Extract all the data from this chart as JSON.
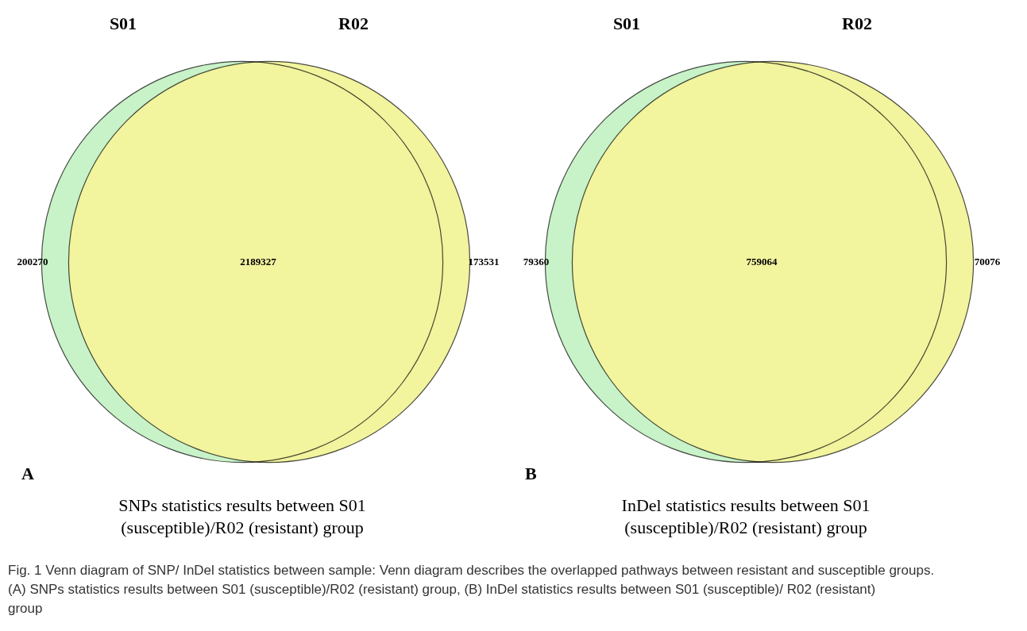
{
  "chart_data": [
    {
      "type": "other",
      "title": "A",
      "xlabel": "SNPs statistics results between S01 (susceptible)/R02 (resistant) group",
      "categories": [
        "S01",
        null,
        "R02"
      ],
      "values": [
        200270,
        2189327,
        173531
      ],
      "data_labels": true,
      "colors": [
        "#c8f2c8",
        "#f2f49e",
        "#f2f49e"
      ],
      "annotations": [
        "Fig. 1 Venn diagram of SNP/ InDel statistics between sample: Venn diagram describes the overlapped pathways between resistant and susceptible groups. (A) SNPs statistics results between S01 (susceptible)/R02 (resistant) group, (B) InDel statistics results between S01 (susceptible)/ R02 (resistant) group"
      ]
    },
    {
      "type": "other",
      "title": "B",
      "xlabel": "InDel statistics results between S01 (susceptible)/R02 (resistant) group",
      "categories": [
        "S01",
        null,
        "R02"
      ],
      "values": [
        79360,
        759064,
        70076
      ],
      "data_labels": true,
      "colors": [
        "#c8f2c8",
        "#f2f49e",
        "#f2f49e"
      ]
    }
  ]
}
